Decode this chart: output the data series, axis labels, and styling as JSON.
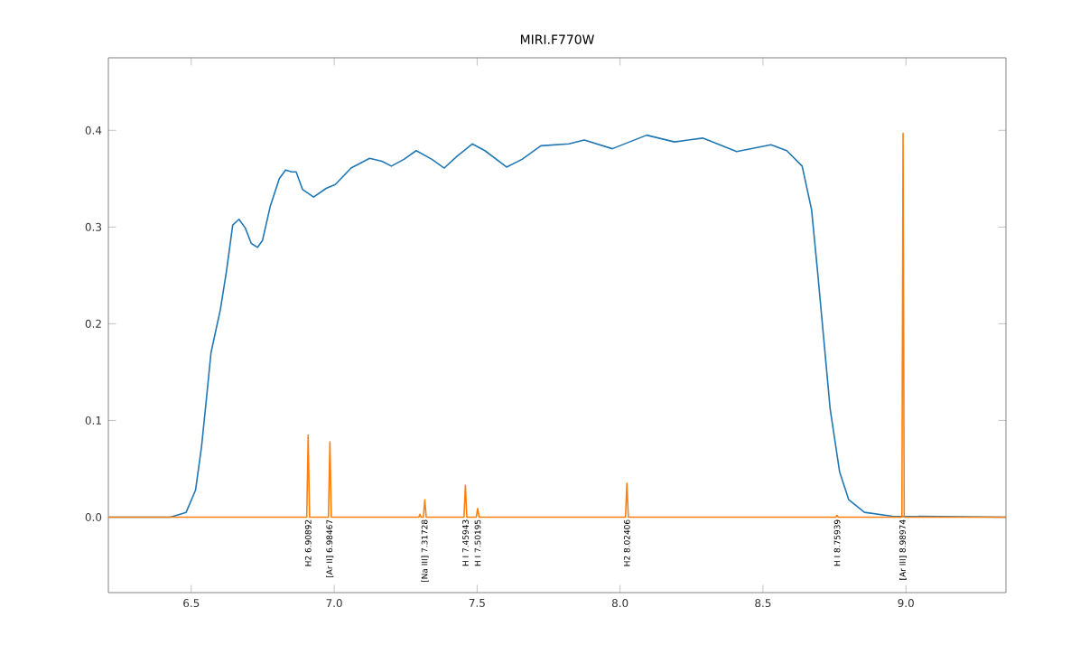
{
  "chart_data": {
    "type": "line",
    "title": "MIRI.F770W",
    "series": [
      {
        "color": "#1f77b4",
        "x": [
          6.21,
          6.427,
          6.482,
          6.515,
          6.536,
          6.554,
          6.569,
          6.602,
          6.623,
          6.645,
          6.667,
          6.689,
          6.71,
          6.732,
          6.749,
          6.776,
          6.808,
          6.83,
          6.852,
          6.867,
          6.889,
          6.928,
          6.972,
          7.004,
          7.059,
          7.124,
          7.167,
          7.2,
          7.244,
          7.287,
          7.342,
          7.385,
          7.429,
          7.483,
          7.527,
          7.603,
          7.657,
          7.723,
          7.821,
          7.875,
          7.973,
          8.093,
          8.191,
          8.289,
          8.408,
          8.528,
          8.583,
          8.637,
          8.67,
          8.691,
          8.713,
          8.735,
          8.768,
          8.8,
          8.855,
          8.953,
          9.35
        ],
        "values": [
          0.0,
          0.0,
          0.005,
          0.028,
          0.073,
          0.125,
          0.17,
          0.215,
          0.254,
          0.302,
          0.308,
          0.299,
          0.283,
          0.279,
          0.286,
          0.321,
          0.35,
          0.359,
          0.357,
          0.357,
          0.339,
          0.331,
          0.34,
          0.344,
          0.361,
          0.371,
          0.368,
          0.363,
          0.37,
          0.379,
          0.37,
          0.361,
          0.373,
          0.386,
          0.379,
          0.362,
          0.37,
          0.384,
          0.386,
          0.39,
          0.381,
          0.395,
          0.388,
          0.392,
          0.378,
          0.385,
          0.379,
          0.363,
          0.318,
          0.254,
          0.183,
          0.112,
          0.047,
          0.018,
          0.005,
          0.001,
          0.0
        ]
      },
      {
        "color": "#ff7f0e",
        "x": [
          6.21,
          6.904,
          6.909,
          6.914,
          6.98,
          6.985,
          6.99,
          7.296,
          7.3,
          7.304,
          7.312,
          7.317,
          7.322,
          7.454,
          7.459,
          7.464,
          7.497,
          7.502,
          7.507,
          8.019,
          8.024,
          8.029,
          8.755,
          8.759,
          8.764,
          8.986,
          8.99,
          8.994,
          9.35
        ],
        "values": [
          0.0,
          0.0,
          0.085,
          0.0,
          0.0,
          0.078,
          0.0,
          0.0,
          0.003,
          0.0,
          0.0,
          0.018,
          0.0,
          0.0,
          0.033,
          0.0,
          0.0,
          0.009,
          0.0,
          0.0,
          0.035,
          0.0,
          0.0,
          0.002,
          0.0,
          0.0,
          0.397,
          0.0,
          0.0
        ]
      }
    ],
    "xlim": [
      6.21,
      9.35
    ],
    "ylim": [
      -0.078,
      0.475
    ],
    "xticks": [
      6.5,
      {
        "value": 7,
        "label": "7.0"
      },
      7.5,
      {
        "value": 8,
        "label": "8.0"
      },
      8.5,
      {
        "value": 9,
        "label": "9.0"
      }
    ],
    "yticks": [
      {
        "value": 0,
        "label": "0.0"
      },
      0.1,
      0.2,
      0.3,
      0.4
    ],
    "grid": false,
    "marker": "none",
    "line_style": "solid",
    "annotations": [
      {
        "text": "H2 6.90892",
        "x": 6.90892,
        "y": 0.0
      },
      {
        "text": "[Ar II] 6.98467",
        "x": 6.98467,
        "y": 0.0
      },
      {
        "text": "[Na III] 7.31728",
        "x": 7.31728,
        "y": 0.0
      },
      {
        "text": "H I 7.45943",
        "x": 7.45943,
        "y": 0.0
      },
      {
        "text": "H I 7.50195",
        "x": 7.50195,
        "y": 0.0
      },
      {
        "text": "H2 8.02406",
        "x": 8.02406,
        "y": 0.0
      },
      {
        "text": "H I 8.75939",
        "x": 8.75939,
        "y": 0.0
      },
      {
        "text": "[Ar III] 8.98974",
        "x": 8.98974,
        "y": 0.0
      }
    ]
  }
}
